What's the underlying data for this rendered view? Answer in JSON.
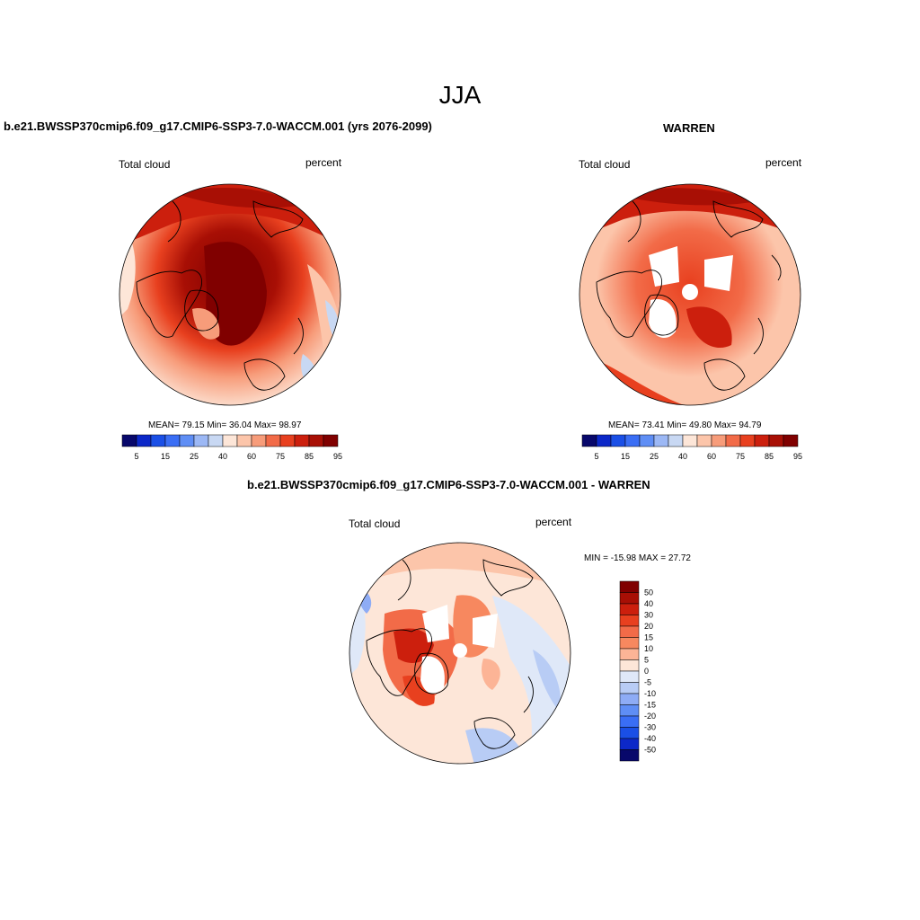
{
  "title": "JJA",
  "panels": [
    {
      "header": "b.e21.BWSSP370cmip6.f09_g17.CMIP6-SSP3-7.0-WACCM.001 (yrs 2076-2099)",
      "left_label": "Total cloud",
      "right_label": "percent",
      "stats": "MEAN=  79.15  Min=  36.04  Max=  98.97"
    },
    {
      "header": "WARREN",
      "left_label": "Total cloud",
      "right_label": "percent",
      "stats": "MEAN=  73.41  Min=  49.80  Max=  94.79"
    },
    {
      "header": "b.e21.BWSSP370cmip6.f09_g17.CMIP6-SSP3-7.0-WACCM.001 - WARREN",
      "left_label": "Total cloud",
      "right_label": "percent",
      "stats": "MIN = -15.98 MAX =  27.72"
    }
  ],
  "horizontal_colorbar": {
    "colors": [
      "#08086b",
      "#0c28c8",
      "#1a4fe6",
      "#3a6ef5",
      "#5f8ef5",
      "#9cb8f5",
      "#c8d8f3",
      "#fde6d8",
      "#fcc5aa",
      "#f79c7a",
      "#f26b48",
      "#e8401f",
      "#cc1f0d",
      "#a80f05",
      "#800000"
    ],
    "labels": [
      "5",
      "15",
      "25",
      "40",
      "60",
      "75",
      "85",
      "95"
    ]
  },
  "vertical_colorbar": {
    "colors_top_to_bottom": [
      "#800000",
      "#a80f05",
      "#cc1f0d",
      "#e8401f",
      "#f26b48",
      "#f7885f",
      "#fcb496",
      "#fde6d8",
      "#dfe8f8",
      "#b8ccf5",
      "#8eacf5",
      "#5f8ef5",
      "#3a6ef5",
      "#1a4fe6",
      "#0c28c8",
      "#08086b"
    ],
    "labels": [
      "50",
      "40",
      "30",
      "20",
      "15",
      "10",
      "5",
      "0",
      "-5",
      "-10",
      "-15",
      "-20",
      "-30",
      "-40",
      "-50"
    ]
  },
  "chart_data": [
    {
      "type": "heatmap",
      "projection": "north polar stereographic",
      "title": "b.e21.BWSSP370cmip6.f09_g17.CMIP6-SSP3-7.0-WACCM.001 (yrs 2076-2099)",
      "variable": "Total cloud",
      "units": "percent",
      "mean": 79.15,
      "min": 36.04,
      "max": 98.97,
      "contour_levels": [
        5,
        10,
        15,
        20,
        25,
        30,
        40,
        50,
        60,
        70,
        75,
        80,
        85,
        90,
        95
      ]
    },
    {
      "type": "heatmap",
      "projection": "north polar stereographic",
      "title": "WARREN",
      "variable": "Total cloud",
      "units": "percent",
      "mean": 73.41,
      "min": 49.8,
      "max": 94.79,
      "contour_levels": [
        5,
        10,
        15,
        20,
        25,
        30,
        40,
        50,
        60,
        70,
        75,
        80,
        85,
        90,
        95
      ]
    },
    {
      "type": "heatmap",
      "projection": "north polar stereographic",
      "title": "b.e21.BWSSP370cmip6.f09_g17.CMIP6-SSP3-7.0-WACCM.001 - WARREN",
      "variable": "Total cloud",
      "units": "percent",
      "min": -15.98,
      "max": 27.72,
      "contour_levels": [
        -50,
        -40,
        -30,
        -20,
        -15,
        -10,
        -5,
        0,
        5,
        10,
        15,
        20,
        30,
        40,
        50
      ]
    }
  ]
}
